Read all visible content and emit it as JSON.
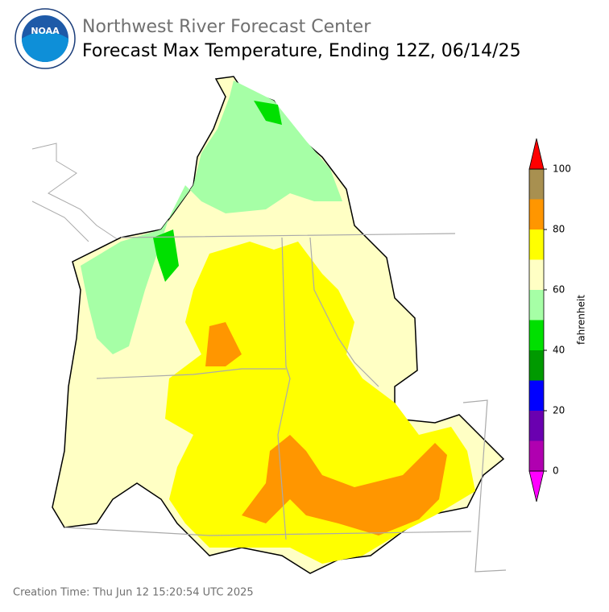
{
  "header": {
    "logo": "NOAA",
    "org": "Northwest River Forecast Center",
    "title": "Forecast Max Temperature, Ending 12Z, 06/14/25"
  },
  "colorbar": {
    "label": "fahrenheit",
    "ticks": [
      0,
      20,
      40,
      60,
      80,
      100
    ],
    "bounds": [
      0,
      10,
      20,
      30,
      40,
      50,
      60,
      70,
      80,
      90,
      100
    ],
    "colors": [
      "#b000b0",
      "#6a00b0",
      "#0000ff",
      "#009a00",
      "#00e000",
      "#a6ffa6",
      "#ffffc4",
      "#ffff00",
      "#ff9600",
      "#a89050"
    ],
    "under_color": "#ff00ff",
    "over_color": "#ff0000"
  },
  "footer": "Creation Time: Thu Jun 12 15:20:54 UTC 2025"
}
